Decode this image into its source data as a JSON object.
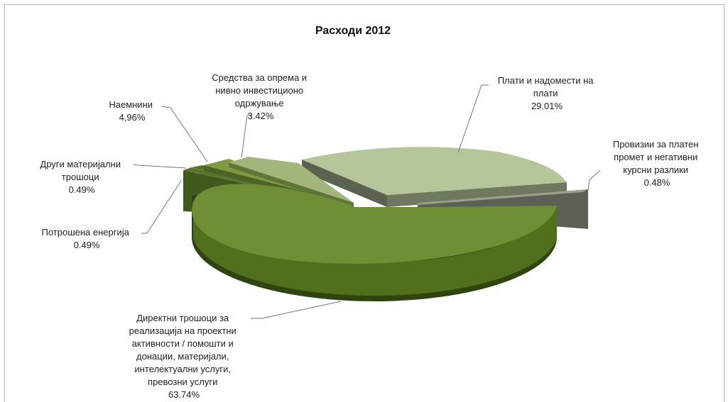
{
  "chart_data": {
    "type": "pie",
    "style": "3d-exploded",
    "title": "Расходи 2012",
    "slices": [
      {
        "label": "Плати и надомести на плати",
        "value": 29.01,
        "display": "29.01%",
        "color": "#b7c59a"
      },
      {
        "label": "Провизии за платен промет и негативни курсни разлики",
        "value": 0.48,
        "display": "0.48%",
        "color": "#7e8470"
      },
      {
        "label": "Директни трошоци за реализација на проектни активности / помошти и донации, материјали, интелектуални услуги, превозни услуги",
        "value": 63.74,
        "display": "63.74%",
        "color": "#6f8f36"
      },
      {
        "label": "Потрошена енергија",
        "value": 0.49,
        "display": "0.49%",
        "color": "#3f5a1c"
      },
      {
        "label": "Други материјални трошоци",
        "value": 0.49,
        "display": "0.49%",
        "color": "#55751f"
      },
      {
        "label": "Наемнини",
        "value": 4.96,
        "display": "4,96%",
        "color": "#7f9a3e"
      },
      {
        "label": "Средства за опрема и нивно инвестиционо одржување",
        "value": 3.42,
        "display": "3.42%",
        "color": "#a3b57b"
      }
    ]
  }
}
